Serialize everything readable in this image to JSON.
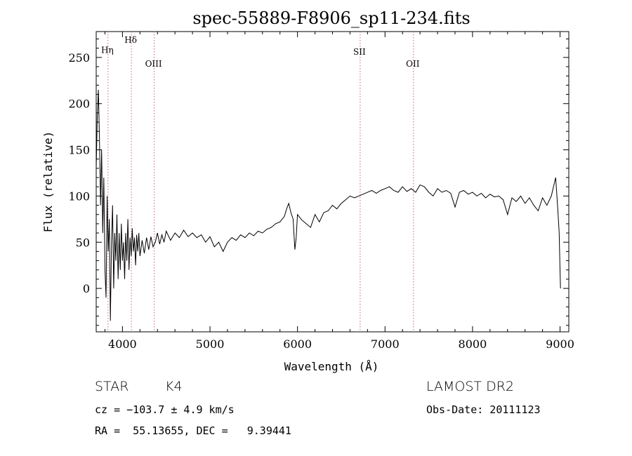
{
  "chart_data": {
    "type": "line",
    "title": "spec-55889-F8906_sp11-234.fits",
    "xlabel": "Wavelength (Å)",
    "ylabel": "Flux (relative)",
    "xlim": [
      3700,
      9100
    ],
    "ylim": [
      -47,
      278
    ],
    "xticks": [
      4000,
      5000,
      6000,
      7000,
      8000,
      9000
    ],
    "yticks": [
      0,
      50,
      100,
      150,
      200,
      250
    ],
    "line_color": "#000000",
    "marker_color": "#d06060",
    "grid": false,
    "lines": [
      {
        "label": "Hη",
        "x": 3835,
        "label_y": 255
      },
      {
        "label": "Hδ",
        "x": 4102,
        "label_y": 266
      },
      {
        "label": "OIII",
        "x": 4363,
        "label_y": 240
      },
      {
        "label": "SII",
        "x": 6716,
        "label_y": 253
      },
      {
        "label": "OII",
        "x": 7325,
        "label_y": 240
      }
    ],
    "series": [
      {
        "points": [
          [
            3700,
            130
          ],
          [
            3712,
            185
          ],
          [
            3725,
            215
          ],
          [
            3738,
            160
          ],
          [
            3750,
            90
          ],
          [
            3762,
            150
          ],
          [
            3775,
            60
          ],
          [
            3787,
            120
          ],
          [
            3800,
            20
          ],
          [
            3812,
            -10
          ],
          [
            3825,
            100
          ],
          [
            3837,
            40
          ],
          [
            3850,
            75
          ],
          [
            3862,
            -35
          ],
          [
            3875,
            50
          ],
          [
            3887,
            90
          ],
          [
            3900,
            0
          ],
          [
            3912,
            60
          ],
          [
            3925,
            30
          ],
          [
            3937,
            80
          ],
          [
            3950,
            10
          ],
          [
            3962,
            60
          ],
          [
            3975,
            20
          ],
          [
            3987,
            70
          ],
          [
            4000,
            30
          ],
          [
            4012,
            50
          ],
          [
            4025,
            10
          ],
          [
            4037,
            60
          ],
          [
            4050,
            30
          ],
          [
            4062,
            75
          ],
          [
            4075,
            20
          ],
          [
            4087,
            55
          ],
          [
            4100,
            35
          ],
          [
            4112,
            65
          ],
          [
            4125,
            40
          ],
          [
            4137,
            55
          ],
          [
            4150,
            25
          ],
          [
            4162,
            58
          ],
          [
            4175,
            40
          ],
          [
            4187,
            60
          ],
          [
            4200,
            35
          ],
          [
            4225,
            52
          ],
          [
            4250,
            38
          ],
          [
            4275,
            55
          ],
          [
            4300,
            42
          ],
          [
            4325,
            56
          ],
          [
            4350,
            45
          ],
          [
            4375,
            50
          ],
          [
            4400,
            60
          ],
          [
            4425,
            48
          ],
          [
            4450,
            58
          ],
          [
            4475,
            50
          ],
          [
            4500,
            62
          ],
          [
            4550,
            52
          ],
          [
            4600,
            60
          ],
          [
            4650,
            55
          ],
          [
            4700,
            63
          ],
          [
            4750,
            56
          ],
          [
            4800,
            60
          ],
          [
            4850,
            55
          ],
          [
            4900,
            58
          ],
          [
            4950,
            50
          ],
          [
            5000,
            56
          ],
          [
            5050,
            45
          ],
          [
            5100,
            50
          ],
          [
            5150,
            40
          ],
          [
            5200,
            50
          ],
          [
            5250,
            55
          ],
          [
            5300,
            52
          ],
          [
            5350,
            58
          ],
          [
            5400,
            55
          ],
          [
            5450,
            60
          ],
          [
            5500,
            57
          ],
          [
            5550,
            62
          ],
          [
            5600,
            60
          ],
          [
            5650,
            64
          ],
          [
            5700,
            66
          ],
          [
            5750,
            70
          ],
          [
            5800,
            72
          ],
          [
            5850,
            78
          ],
          [
            5875,
            86
          ],
          [
            5900,
            92
          ],
          [
            5925,
            82
          ],
          [
            5950,
            75
          ],
          [
            5970,
            42
          ],
          [
            5985,
            55
          ],
          [
            6000,
            80
          ],
          [
            6050,
            74
          ],
          [
            6100,
            70
          ],
          [
            6150,
            66
          ],
          [
            6200,
            80
          ],
          [
            6250,
            72
          ],
          [
            6300,
            82
          ],
          [
            6350,
            84
          ],
          [
            6400,
            90
          ],
          [
            6450,
            86
          ],
          [
            6500,
            92
          ],
          [
            6550,
            96
          ],
          [
            6600,
            100
          ],
          [
            6650,
            98
          ],
          [
            6700,
            100
          ],
          [
            6750,
            102
          ],
          [
            6800,
            104
          ],
          [
            6850,
            106
          ],
          [
            6900,
            103
          ],
          [
            6950,
            106
          ],
          [
            7000,
            108
          ],
          [
            7050,
            110
          ],
          [
            7100,
            106
          ],
          [
            7150,
            104
          ],
          [
            7200,
            110
          ],
          [
            7250,
            105
          ],
          [
            7300,
            108
          ],
          [
            7350,
            104
          ],
          [
            7400,
            112
          ],
          [
            7450,
            110
          ],
          [
            7500,
            104
          ],
          [
            7550,
            100
          ],
          [
            7600,
            108
          ],
          [
            7650,
            104
          ],
          [
            7700,
            106
          ],
          [
            7750,
            103
          ],
          [
            7800,
            88
          ],
          [
            7850,
            104
          ],
          [
            7900,
            106
          ],
          [
            7950,
            102
          ],
          [
            8000,
            104
          ],
          [
            8050,
            100
          ],
          [
            8100,
            103
          ],
          [
            8150,
            98
          ],
          [
            8200,
            102
          ],
          [
            8250,
            99
          ],
          [
            8300,
            100
          ],
          [
            8350,
            96
          ],
          [
            8400,
            80
          ],
          [
            8450,
            98
          ],
          [
            8500,
            94
          ],
          [
            8550,
            100
          ],
          [
            8600,
            92
          ],
          [
            8650,
            98
          ],
          [
            8700,
            90
          ],
          [
            8750,
            84
          ],
          [
            8800,
            98
          ],
          [
            8850,
            90
          ],
          [
            8900,
            100
          ],
          [
            8950,
            120
          ],
          [
            8975,
            85
          ],
          [
            8990,
            60
          ],
          [
            9000,
            20
          ],
          [
            9005,
            0
          ]
        ]
      }
    ]
  },
  "info": {
    "object_type": "STAR",
    "subclass": "K4",
    "survey": "LAMOST DR2",
    "redshift": "cz = −103.7 ± 4.9 km/s",
    "obs_date": "Obs-Date: 20111123",
    "coords": "RA =  55.13655, DEC =   9.39441"
  }
}
